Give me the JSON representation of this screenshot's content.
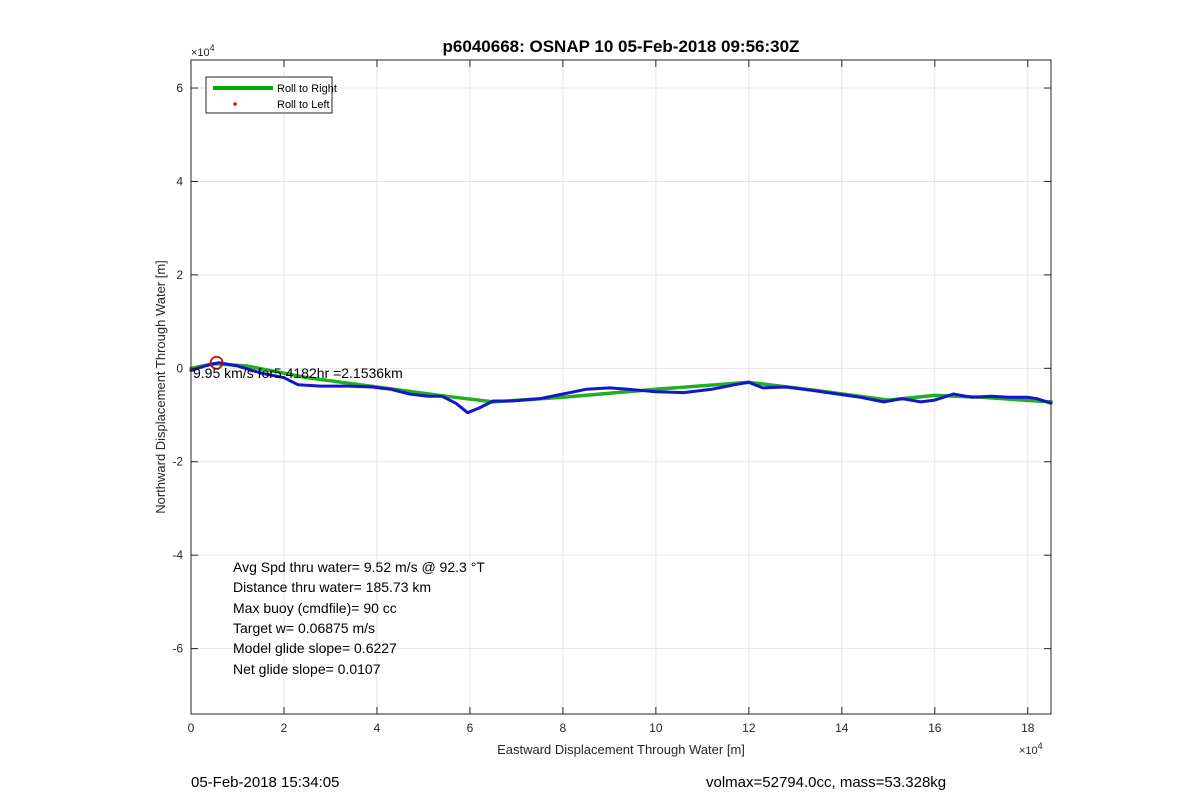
{
  "chart_data": {
    "type": "line",
    "title": "p6040668: OSNAP 10 05-Feb-2018 09:56:30Z",
    "xlabel": "Eastward Displacement Through Water [m]",
    "ylabel": "Northward Displacement Through Water [m]",
    "x_exponent_label": "×10",
    "x_exponent": "4",
    "y_exponent_label": "×10",
    "y_exponent": "4",
    "xlim": [
      0,
      18.5
    ],
    "ylim": [
      -7.4,
      6.6
    ],
    "x_scale_note": "values in units of 10^4 m",
    "xticks": [
      0,
      2,
      4,
      6,
      8,
      10,
      12,
      14,
      16,
      18
    ],
    "yticks": [
      -6,
      -4,
      -2,
      0,
      2,
      4,
      6
    ],
    "grid": true,
    "legend_position": "top-left",
    "legend": [
      {
        "label": "Roll to Right",
        "color": "#00aa00",
        "style": "line"
      },
      {
        "label": "Roll to Left",
        "color": "#ff0000",
        "style": "dot"
      }
    ],
    "series": [
      {
        "name": "Roll to Right",
        "color": "#1faf1f",
        "x": [
          0,
          0.5,
          1.2,
          2.5,
          4.0,
          5.5,
          6.5,
          8.0,
          10.0,
          12.0,
          13.5,
          15.0,
          16.0,
          17.0,
          18.5
        ],
        "y": [
          0,
          0.1,
          0.05,
          -0.2,
          -0.4,
          -0.6,
          -0.72,
          -0.62,
          -0.45,
          -0.3,
          -0.48,
          -0.68,
          -0.58,
          -0.62,
          -0.72
        ]
      },
      {
        "name": "",
        "color": "#1515cc",
        "x": [
          0,
          0.3,
          0.6,
          1.0,
          1.5,
          2.0,
          2.3,
          2.8,
          3.4,
          3.9,
          4.3,
          4.7,
          5.1,
          5.4,
          5.7,
          5.95,
          6.2,
          6.5,
          6.9,
          7.5,
          8.0,
          8.5,
          9.0,
          9.4,
          10.0,
          10.6,
          11.2,
          11.7,
          12.0,
          12.3,
          12.8,
          13.4,
          13.9,
          14.4,
          14.9,
          15.3,
          15.7,
          16.0,
          16.4,
          16.8,
          17.2,
          17.6,
          18.0,
          18.2,
          18.5
        ],
        "y": [
          -0.05,
          0.05,
          0.12,
          0.05,
          -0.1,
          -0.2,
          -0.35,
          -0.38,
          -0.38,
          -0.4,
          -0.45,
          -0.55,
          -0.6,
          -0.6,
          -0.75,
          -0.95,
          -0.85,
          -0.7,
          -0.7,
          -0.65,
          -0.55,
          -0.45,
          -0.42,
          -0.45,
          -0.5,
          -0.52,
          -0.45,
          -0.35,
          -0.3,
          -0.42,
          -0.4,
          -0.48,
          -0.55,
          -0.62,
          -0.72,
          -0.65,
          -0.72,
          -0.68,
          -0.55,
          -0.62,
          -0.6,
          -0.62,
          -0.62,
          -0.65,
          -0.75
        ]
      }
    ],
    "start_marker": {
      "x": 0.55,
      "y": 0.12,
      "color": "#cc0000"
    },
    "current_label": {
      "text": "9.95 km/s for5.4182hr =2.1536km",
      "x": 0.05,
      "y": -0.12
    },
    "stats": [
      "Avg Spd thru water=  9.52 m/s @  92.3 °T",
      "Distance thru water= 185.73 km",
      "Max buoy (cmdfile)= 90 cc",
      "Target w= 0.06875 m/s",
      "Model glide slope= 0.6227",
      "Net glide slope= 0.0107"
    ]
  },
  "footer": {
    "left": "05-Feb-2018 15:34:05",
    "right": "volmax=52794.0cc, mass=53.328kg"
  }
}
